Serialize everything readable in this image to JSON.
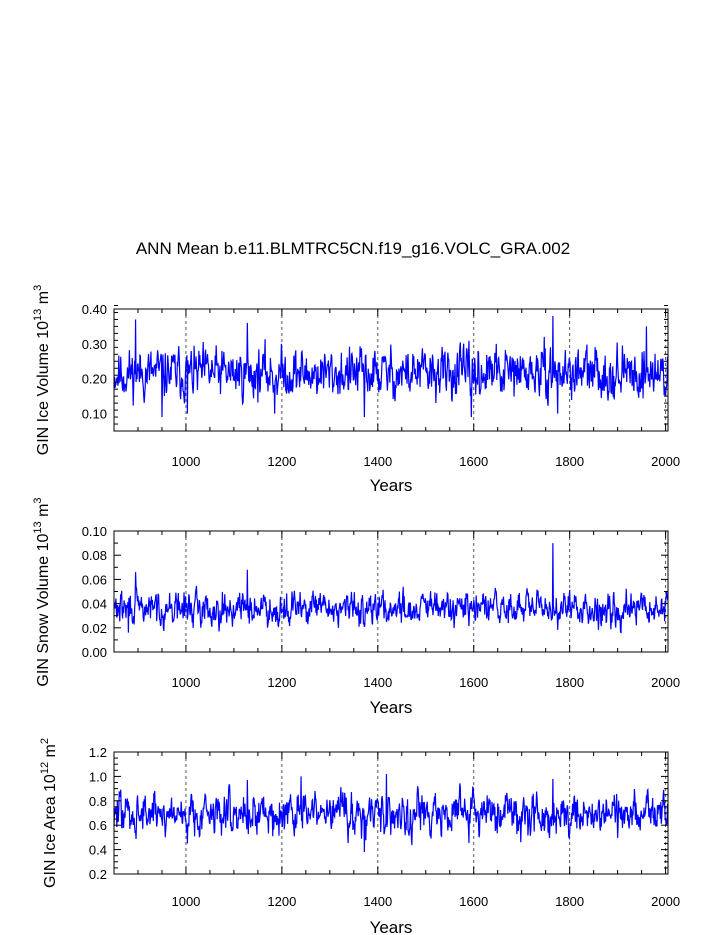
{
  "title": "ANN Mean b.e11.BLMTRC5CN.f19_g16.VOLC_GRA.002",
  "colors": {
    "series": "#0000ff",
    "axis": "#000000",
    "refline": "#555555"
  },
  "chart_data": [
    {
      "type": "line",
      "name": "ice-volume",
      "ylabel_main": "GIN Ice Volume 10",
      "ylabel_sup1": "13",
      "ylabel_mid": " m",
      "ylabel_sup2": "3",
      "xlabel": "Years",
      "xlim": [
        850,
        2005
      ],
      "ylim": [
        0.05,
        0.4
      ],
      "xticks": [
        1000,
        1200,
        1400,
        1600,
        1800,
        2000
      ],
      "xtick_labels": [
        "1000",
        "1200",
        "1400",
        "1600",
        "1800",
        "2000"
      ],
      "yticks": [
        0.1,
        0.2,
        0.3,
        0.4
      ],
      "ytick_labels": [
        "0.10",
        "0.20",
        "0.30",
        "0.40"
      ],
      "yminor": 0.02,
      "reference_years": [
        1000,
        1200,
        1400,
        1600,
        1800,
        2000
      ],
      "series": [
        {
          "name": "GIN Ice Volume",
          "x_start": 850,
          "x_end": 2005,
          "mean": 0.215,
          "amplitude": 0.045,
          "seed": 11,
          "key_points": [
            {
              "x": 895,
              "y": 0.37
            },
            {
              "x": 950,
              "y": 0.09
            },
            {
              "x": 1003,
              "y": 0.1
            },
            {
              "x": 1128,
              "y": 0.36
            },
            {
              "x": 1185,
              "y": 0.1
            },
            {
              "x": 1372,
              "y": 0.09
            },
            {
              "x": 1595,
              "y": 0.09
            },
            {
              "x": 1765,
              "y": 0.38
            },
            {
              "x": 1775,
              "y": 0.1
            },
            {
              "x": 1960,
              "y": 0.35
            }
          ]
        }
      ]
    },
    {
      "type": "line",
      "name": "snow-volume",
      "ylabel_main": "GIN Snow Volume 10",
      "ylabel_sup1": "13",
      "ylabel_mid": " m",
      "ylabel_sup2": "3",
      "xlabel": "Years",
      "xlim": [
        850,
        2005
      ],
      "ylim": [
        0.0,
        0.1
      ],
      "xticks": [
        1000,
        1200,
        1400,
        1600,
        1800,
        2000
      ],
      "xtick_labels": [
        "1000",
        "1200",
        "1400",
        "1600",
        "1800",
        "2000"
      ],
      "yticks": [
        0.0,
        0.02,
        0.04,
        0.06,
        0.08,
        0.1
      ],
      "ytick_labels": [
        "0.00",
        "0.02",
        "0.04",
        "0.06",
        "0.08",
        "0.10"
      ],
      "yminor": 0.01,
      "reference_years": [
        1000,
        1200,
        1400,
        1600,
        1800,
        2000
      ],
      "series": [
        {
          "name": "GIN Snow Volume",
          "x_start": 850,
          "x_end": 2005,
          "mean": 0.036,
          "amplitude": 0.0085,
          "seed": 29,
          "key_points": [
            {
              "x": 895,
              "y": 0.066
            },
            {
              "x": 1128,
              "y": 0.068
            },
            {
              "x": 1765,
              "y": 0.09
            },
            {
              "x": 1768,
              "y": 0.03
            },
            {
              "x": 880,
              "y": 0.016
            }
          ]
        }
      ]
    },
    {
      "type": "line",
      "name": "ice-area",
      "ylabel_main": "GIN Ice Area 10",
      "ylabel_sup1": "12",
      "ylabel_mid": " m",
      "ylabel_sup2": "2",
      "xlabel": "Years",
      "xlim": [
        850,
        2005
      ],
      "ylim": [
        0.2,
        1.2
      ],
      "xticks": [
        1000,
        1200,
        1400,
        1600,
        1800,
        2000
      ],
      "xtick_labels": [
        "1000",
        "1200",
        "1400",
        "1600",
        "1800",
        "2000"
      ],
      "yticks": [
        0.2,
        0.4,
        0.6,
        0.8,
        1.0,
        1.2
      ],
      "ytick_labels": [
        "0.2",
        "0.4",
        "0.6",
        "0.8",
        "1.0",
        "1.2"
      ],
      "yminor": 0.05,
      "reference_years": [
        1000,
        1200,
        1400,
        1600,
        1800,
        2000
      ],
      "series": [
        {
          "name": "GIN Ice Area",
          "x_start": 850,
          "x_end": 2005,
          "mean": 0.7,
          "amplitude": 0.11,
          "seed": 47,
          "key_points": [
            {
              "x": 1003,
              "y": 0.45
            },
            {
              "x": 1128,
              "y": 0.97
            },
            {
              "x": 1240,
              "y": 1.0
            },
            {
              "x": 1372,
              "y": 0.38
            },
            {
              "x": 1418,
              "y": 1.02
            },
            {
              "x": 1765,
              "y": 0.98
            }
          ]
        }
      ]
    }
  ]
}
